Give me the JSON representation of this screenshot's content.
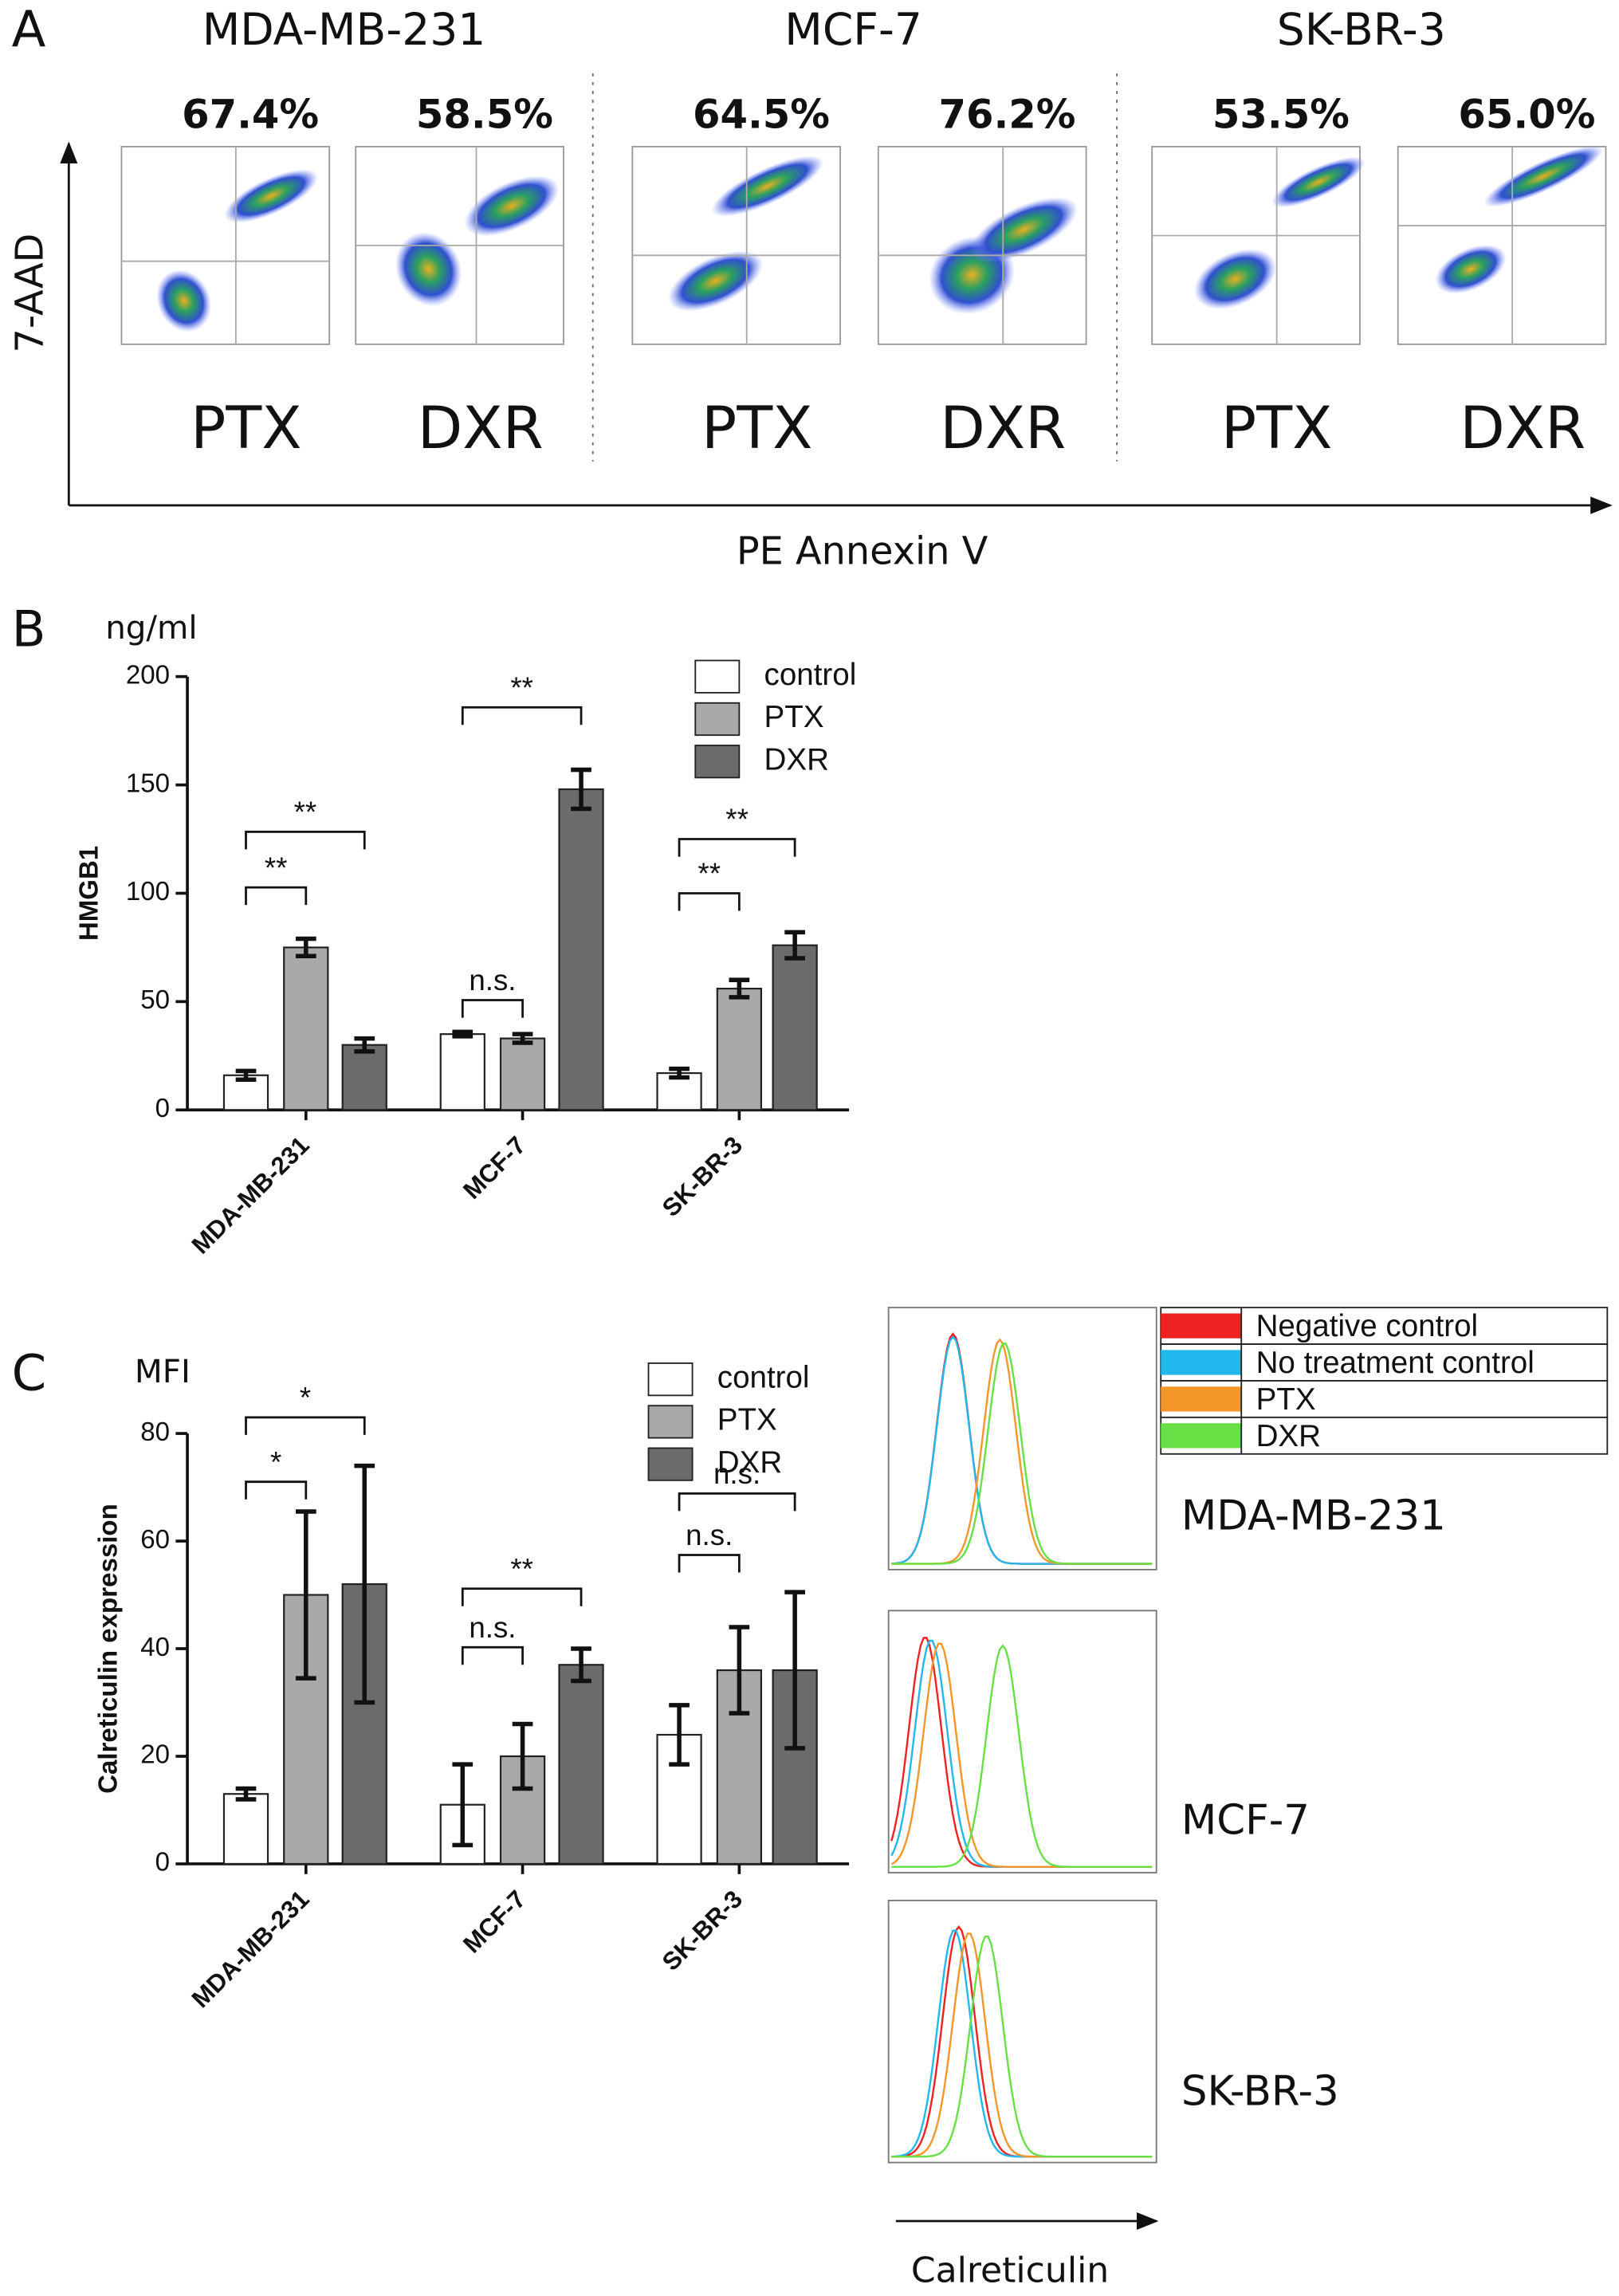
{
  "chart_data": [
    {
      "type": "flow",
      "panel_label": "A",
      "x_label": "PE Annexin V",
      "y_label": "7-AAD",
      "groups": [
        {
          "name": "MDA-MB-231",
          "plots": [
            {
              "treatment": "PTX",
              "percent": "67.4%"
            },
            {
              "treatment": "DXR",
              "percent": "58.5%"
            }
          ]
        },
        {
          "name": "MCF-7",
          "plots": [
            {
              "treatment": "PTX",
              "percent": "64.5%"
            },
            {
              "treatment": "DXR",
              "percent": "76.2%"
            }
          ]
        },
        {
          "name": "SK-BR-3",
          "plots": [
            {
              "treatment": "PTX",
              "percent": "53.5%"
            },
            {
              "treatment": "DXR",
              "percent": "65.0%"
            }
          ]
        }
      ]
    },
    {
      "type": "bar",
      "panel_label": "B",
      "unit_label": "ng/ml",
      "y_label": "HMGB1",
      "categories": [
        "MDA-MB-231",
        "MCF-7",
        "SK-BR-3"
      ],
      "series": [
        {
          "name": "control",
          "color": "#ffffff",
          "values": [
            16,
            35,
            17
          ],
          "errors": [
            2,
            1,
            2
          ]
        },
        {
          "name": "PTX",
          "color": "#a9a9ab",
          "values": [
            75,
            33,
            56
          ],
          "errors": [
            4,
            2,
            4
          ]
        },
        {
          "name": "DXR",
          "color": "#6b6b6d",
          "values": [
            30,
            148,
            76
          ],
          "errors": [
            3,
            9,
            6
          ]
        }
      ],
      "ylim": [
        0,
        200
      ],
      "yticks": [
        0,
        50,
        100,
        150,
        200
      ],
      "annotations": [
        "**",
        "**",
        "n.s.",
        "**",
        "**",
        "**"
      ]
    },
    {
      "type": "bar",
      "panel_label": "C",
      "unit_label": "MFI",
      "y_label": "Calreticulin expression",
      "categories": [
        "MDA-MB-231",
        "MCF-7",
        "SK-BR-3"
      ],
      "series": [
        {
          "name": "control",
          "color": "#ffffff",
          "values": [
            13,
            11,
            24
          ],
          "errors": [
            1,
            7.5,
            5.5
          ]
        },
        {
          "name": "PTX",
          "color": "#a9a9ab",
          "values": [
            50,
            20,
            36
          ],
          "errors": [
            15.5,
            6,
            8
          ]
        },
        {
          "name": "DXR",
          "color": "#6b6b6d",
          "values": [
            52,
            37,
            36
          ],
          "errors": [
            22,
            3,
            14.5
          ]
        }
      ],
      "ylim": [
        0,
        80
      ],
      "yticks": [
        0,
        20,
        40,
        60,
        80
      ],
      "annotations": [
        "*",
        "*",
        "n.s.",
        "**",
        "n.s.",
        "n.s."
      ]
    },
    {
      "type": "density",
      "x_label": "Calreticulin",
      "series": [
        {
          "name": "Negative control",
          "color": "#ee2222"
        },
        {
          "name": "No treatment control",
          "color": "#22b8ee"
        },
        {
          "name": "PTX",
          "color": "#f5962a"
        },
        {
          "name": "DXR",
          "color": "#66e044"
        }
      ],
      "panels": [
        "MDA-MB-231",
        "MCF-7",
        "SK-BR-3"
      ]
    }
  ]
}
